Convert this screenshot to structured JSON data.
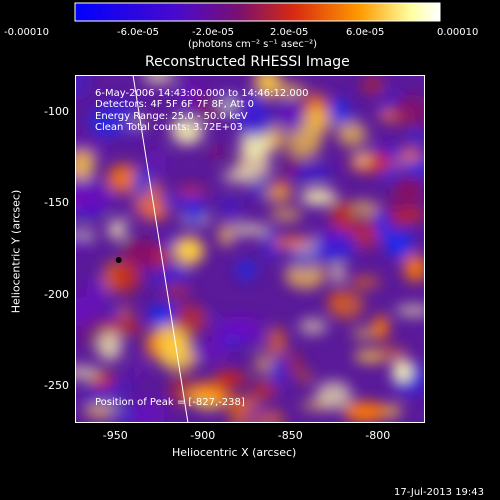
{
  "chart_data": {
    "type": "heatmap",
    "title": "Reconstructed RHESSI Image",
    "xlabel": "Heliocentric X (arcsec)",
    "ylabel": "Heliocentric Y (arcsec)",
    "xlim": [
      -975,
      -775
    ],
    "ylim": [
      -270,
      -80
    ],
    "xticks": [
      "-950",
      "-900",
      "-850",
      "-800"
    ],
    "yticks": [
      "-100",
      "-150",
      "-200",
      "-250"
    ],
    "colorbar": {
      "ticks": [
        "-0.00010",
        "-6.0e-05",
        "-2.0e-05",
        "2.0e-05",
        "6.0e-05",
        "0.00010"
      ],
      "unit_label": "(photons cm⁻² s⁻¹ asec⁻²)",
      "range": [
        -0.0001,
        0.0001
      ],
      "colors": [
        "#0000ff",
        "#6a00c8",
        "#c8281e",
        "#ff8c00",
        "#ffffcc",
        "#ffffff"
      ]
    },
    "annotations": [
      "6-May-2006 14:43:00.000 to 14:46:12.000",
      "Detectors: 4F 5F 6F 7F 8F, Att 0",
      "Energy Range: 25.0 - 50.0 keV",
      "Clean     Total counts: 3.72E+03"
    ],
    "peak_label": "Position of Peak = [-827,-238]",
    "peak_position": [
      -827,
      -238
    ],
    "min_marker": [
      -950,
      -181
    ]
  },
  "footer": {
    "timestamp": "17-Jul-2013 19:43"
  },
  "colors": {
    "background": "#000000",
    "text": "#ffffff"
  }
}
